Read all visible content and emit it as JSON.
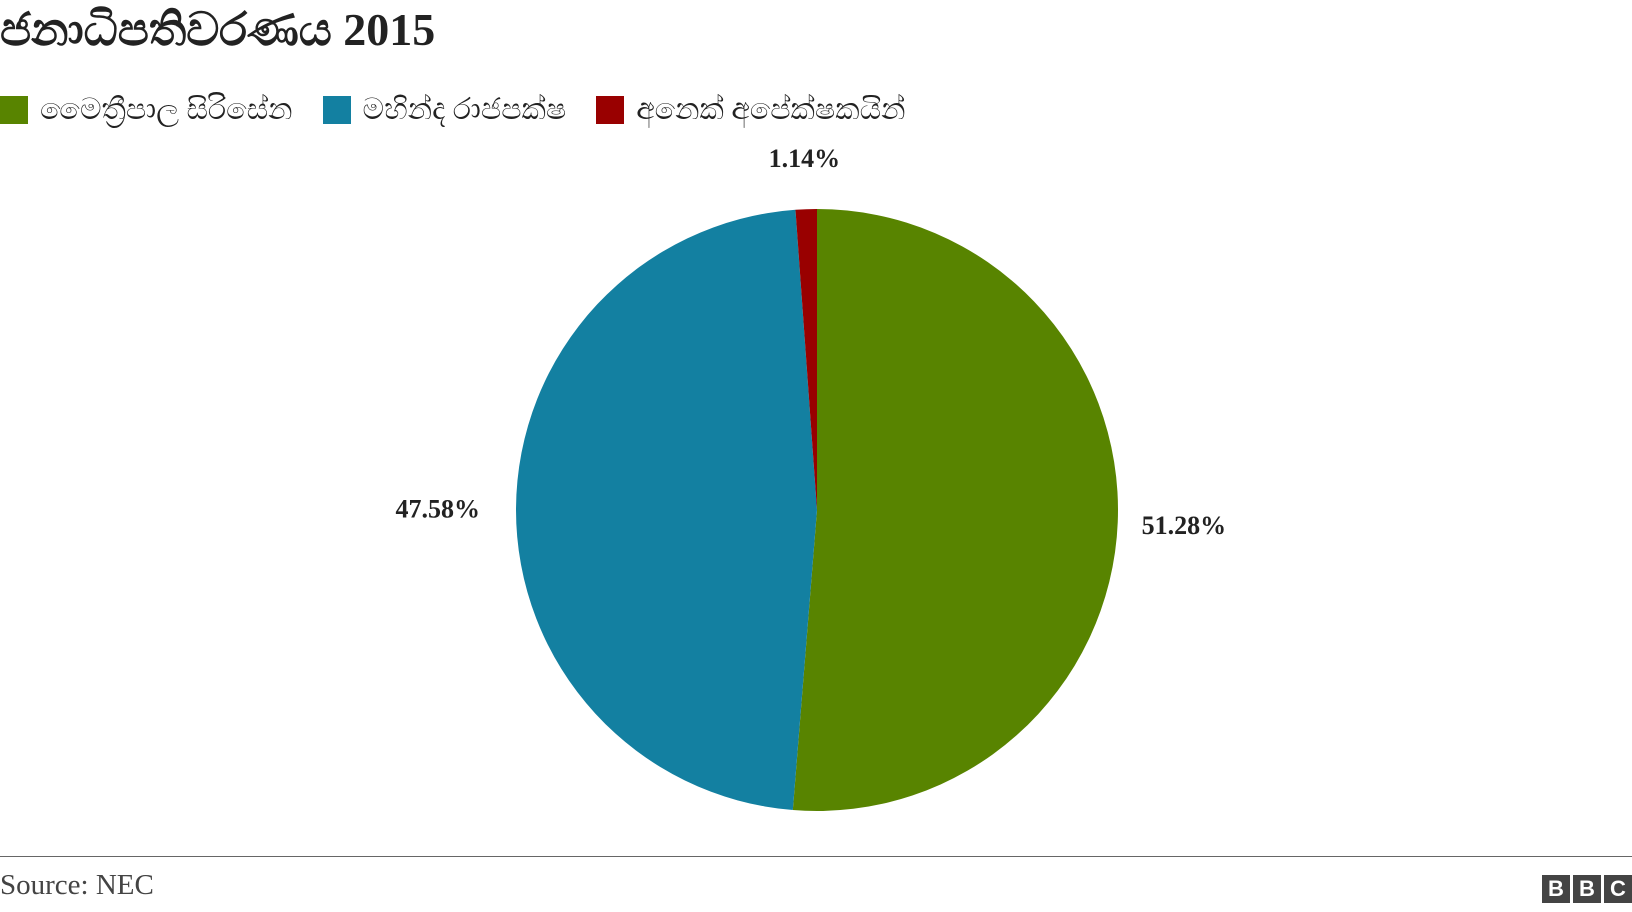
{
  "chart_data": {
    "type": "pie",
    "title": "ජනාධිපතිවරණය 2015",
    "slices": [
      {
        "label": "මෛත්‍රීපාල සිරිසේන",
        "value": 51.28,
        "value_label": "51.28%",
        "color": "#588400"
      },
      {
        "label": "මහින්ද රාජපක්ෂ",
        "value": 47.58,
        "value_label": "47.58%",
        "color": "#1380A1"
      },
      {
        "label": "අනෙක් අපේක්ෂකයින්",
        "value": 1.14,
        "value_label": "1.14%",
        "color": "#990000"
      }
    ],
    "start": "12 o'clock",
    "direction": "clockwise",
    "legend_position": "top-left"
  },
  "footer": {
    "source": "Source: NEC",
    "logo_letters": [
      "B",
      "B",
      "C"
    ]
  }
}
